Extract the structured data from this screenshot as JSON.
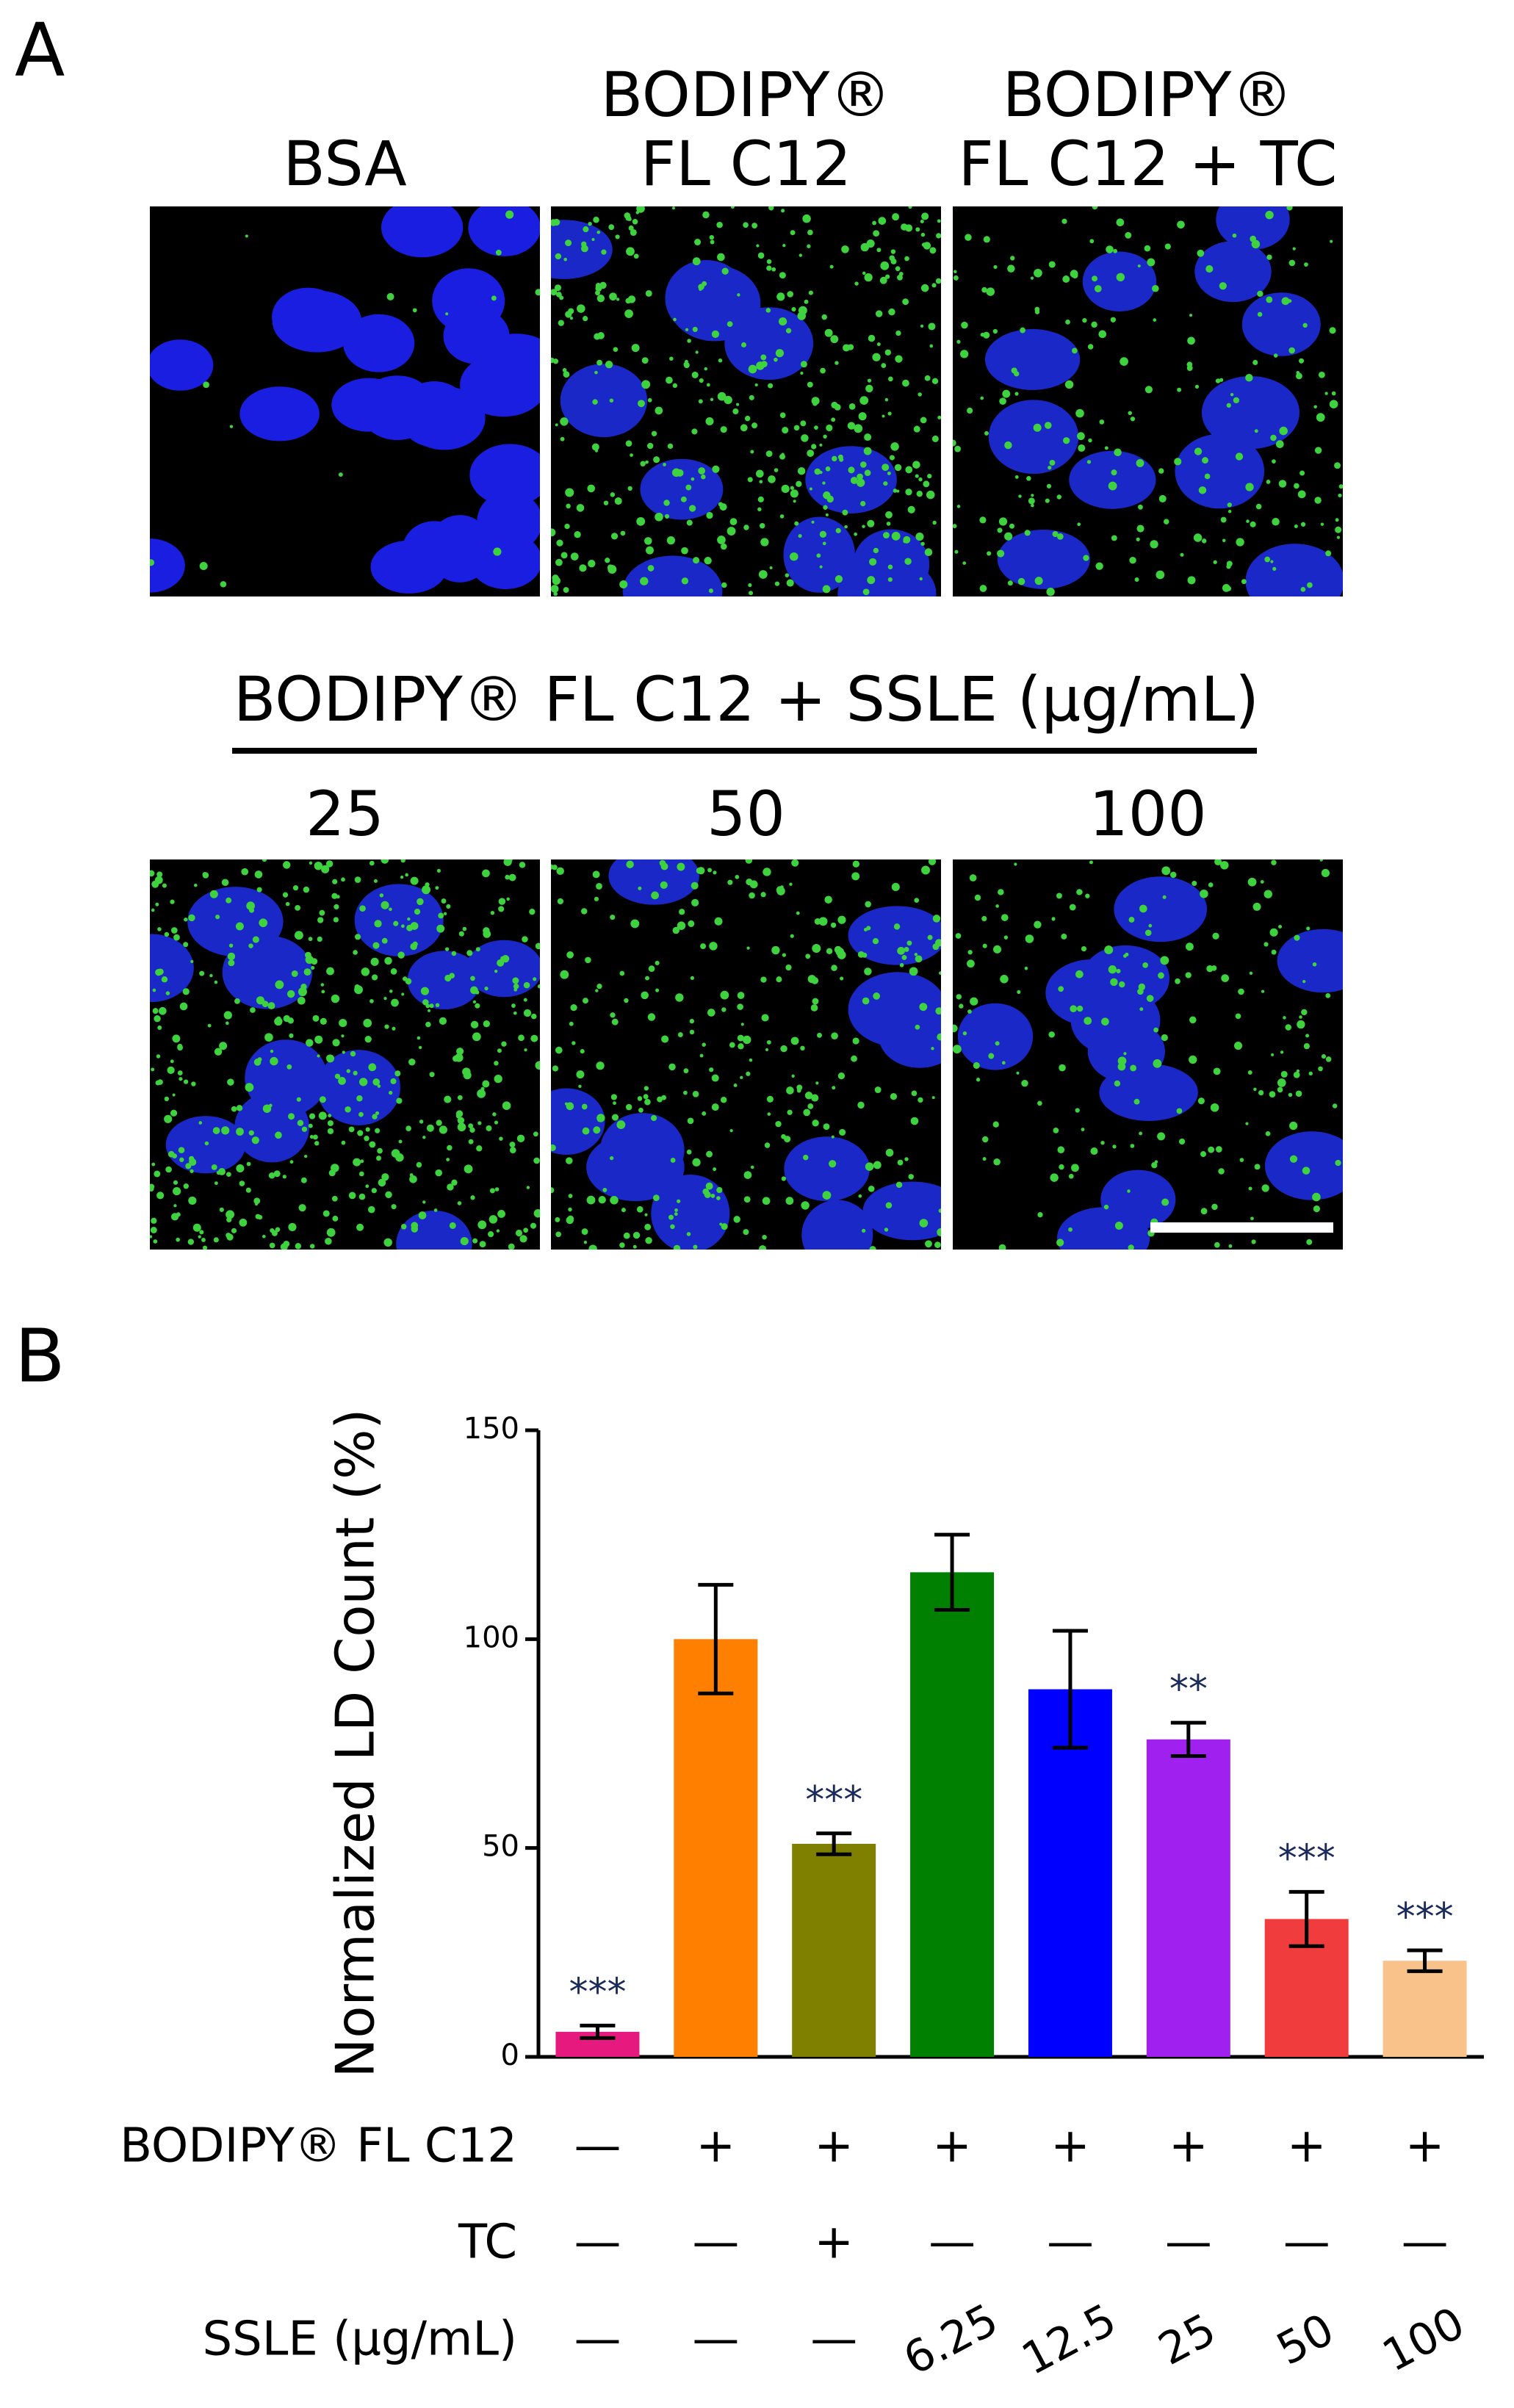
{
  "panel_a": {
    "label": "A",
    "top_titles": [
      [
        "BSA"
      ],
      [
        "BODIPY®",
        "FL C12"
      ],
      [
        "BODIPY®",
        "FL C12 + TC"
      ]
    ],
    "group_title": "BODIPY® FL C12 + SSLE (μg/mL)",
    "bottom_titles": [
      "25",
      "50",
      "100"
    ]
  },
  "chart_data": {
    "type": "bar",
    "panel_label": "B",
    "y_label": "Normalized LD Count (%)",
    "values": [
      6,
      100,
      51,
      116,
      88,
      76,
      33,
      23
    ],
    "errors": [
      1.5,
      13,
      2.5,
      9,
      14,
      4,
      6.5,
      2.5
    ],
    "colors": [
      "#e6197e",
      "#ff8000",
      "#808000",
      "#008000",
      "#0000ff",
      "#a020f0",
      "#f03c3c",
      "#f9c28a"
    ],
    "annotations": [
      "***",
      null,
      "***",
      null,
      null,
      "**",
      "***",
      "***"
    ],
    "ylim": [
      0,
      150
    ],
    "yticks": [
      0,
      50,
      100,
      150
    ],
    "rows": [
      {
        "label": "BODIPY® FL C12",
        "entries": [
          "—",
          "+",
          "+",
          "+",
          "+",
          "+",
          "+",
          "+"
        ]
      },
      {
        "label": "TC",
        "entries": [
          "—",
          "—",
          "+",
          "—",
          "—",
          "—",
          "—",
          "—"
        ]
      },
      {
        "label": "SSLE (μg/mL)",
        "entries": [
          "—",
          "—",
          "—",
          "6.25",
          "12.5",
          "25",
          "50",
          "100"
        ]
      }
    ]
  }
}
